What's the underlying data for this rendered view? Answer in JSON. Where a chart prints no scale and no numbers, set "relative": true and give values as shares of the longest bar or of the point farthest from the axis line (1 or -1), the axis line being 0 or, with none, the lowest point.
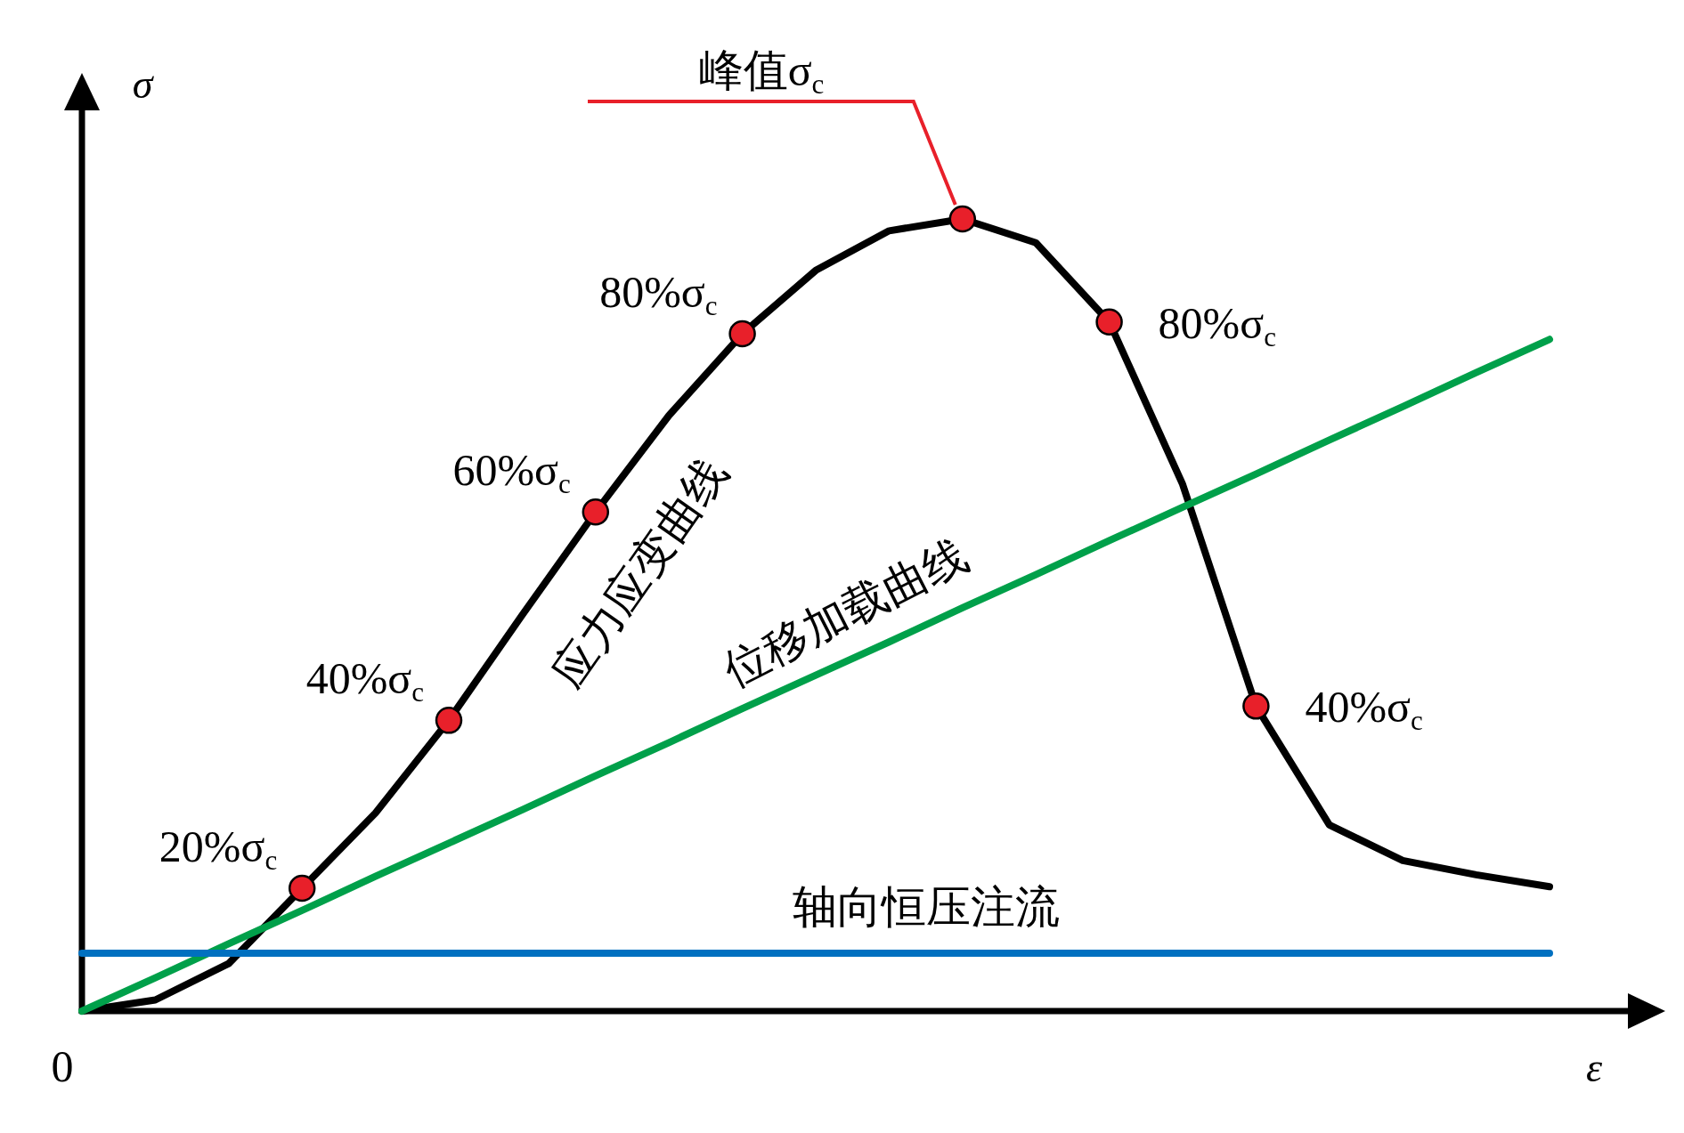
{
  "chart_data": {
    "type": "line",
    "relative": true,
    "xlabel": "ε",
    "ylabel": "σ",
    "categories": [
      null,
      null,
      null,
      null,
      null,
      null,
      null,
      null,
      null,
      null,
      null,
      null,
      null,
      null,
      null,
      null,
      null,
      null,
      null,
      null,
      null
    ],
    "series": [
      {
        "name": "应力应变曲线",
        "color": "#000000",
        "values": [
          0,
          0.014,
          0.06,
          0.155,
          0.25,
          0.367,
          0.5,
          0.63,
          0.752,
          0.855,
          0.935,
          0.985,
          1.0,
          0.97,
          0.87,
          0.665,
          0.385,
          0.235,
          0.19,
          0.172,
          0.157
        ]
      },
      {
        "name": "位移加载曲线",
        "color": "#00a04a",
        "values": [
          0,
          0.042,
          0.085,
          0.127,
          0.17,
          0.212,
          0.254,
          0.297,
          0.339,
          0.382,
          0.424,
          0.466,
          0.509,
          0.551,
          0.594,
          0.636,
          0.678,
          0.721,
          0.763,
          0.806,
          0.848
        ]
      },
      {
        "name": "轴向恒压注流",
        "color": "#0070c0",
        "values": [
          0.073,
          0.073,
          0.073,
          0.073,
          0.073,
          0.073,
          0.073,
          0.073,
          0.073,
          0.073,
          0.073,
          0.073,
          0.073,
          0.073,
          0.073,
          0.073,
          0.073,
          0.073,
          0.073,
          0.073,
          0.073
        ]
      }
    ],
    "annotations": [
      "0",
      "20%σ$_{c}$",
      "40%σ$_{c}$",
      "60%σ$_{c}$",
      "80%σ$_{c}$",
      "峰值σ$_{c}$",
      "80%σ$_{c}$",
      "40%σ$_{c}$"
    ]
  }
}
